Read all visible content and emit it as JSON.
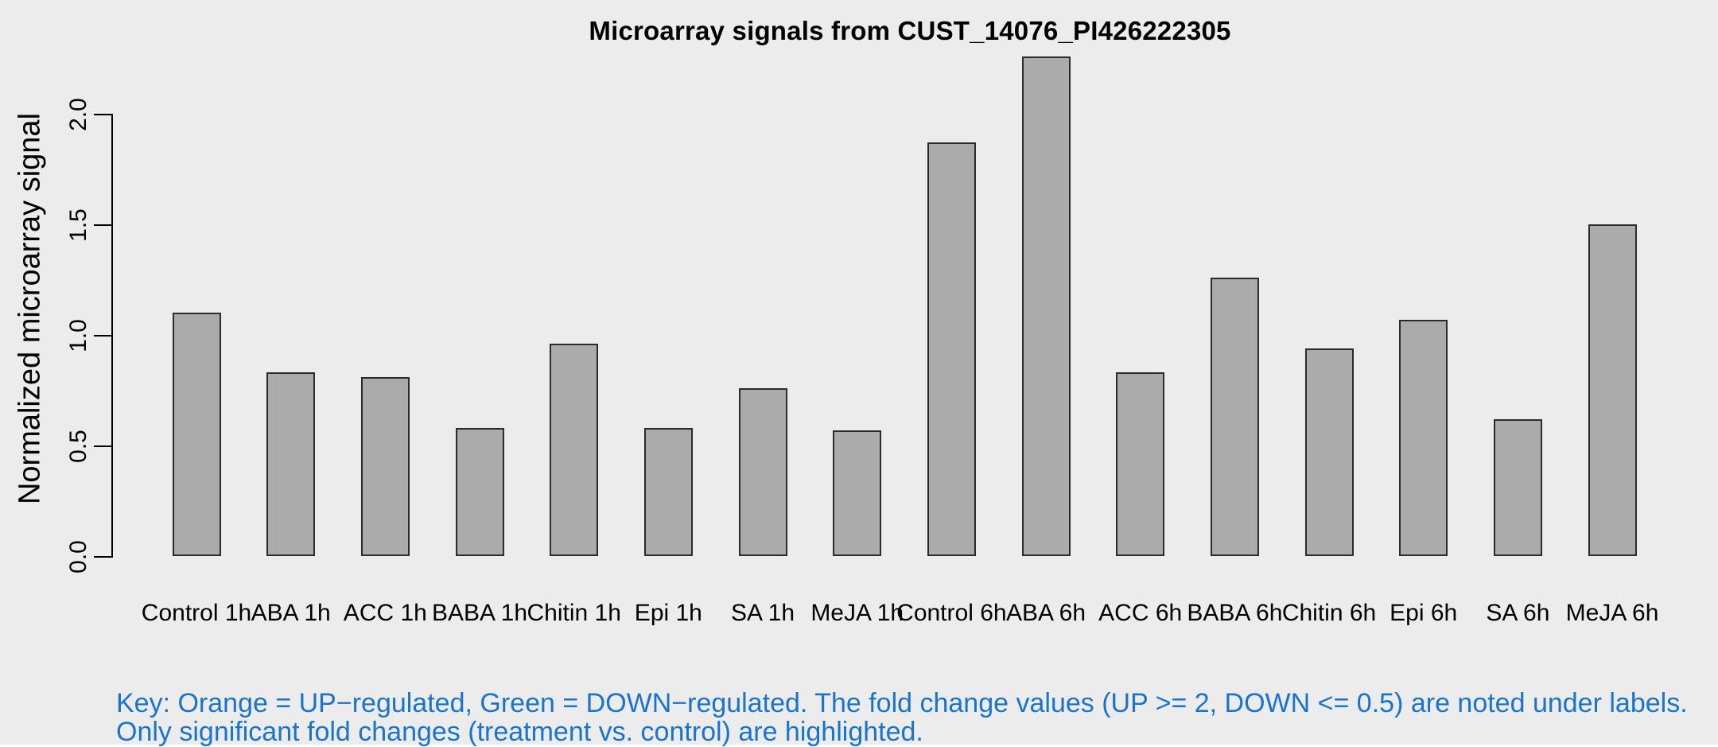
{
  "chart_data": {
    "type": "bar",
    "title": "Microarray signals from CUST_14076_PI426222305",
    "categories": [
      "Control 1h",
      "ABA 1h",
      "ACC 1h",
      "BABA 1h",
      "Chitin 1h",
      "Epi 1h",
      "SA 1h",
      "MeJA 1h",
      "Control 6h",
      "ABA 6h",
      "ACC 6h",
      "BABA 6h",
      "Chitin 6h",
      "Epi 6h",
      "SA 6h",
      "MeJA 6h"
    ],
    "values": [
      1.1,
      0.83,
      0.81,
      0.58,
      0.96,
      0.58,
      0.76,
      0.57,
      1.87,
      2.26,
      0.83,
      1.26,
      0.94,
      1.07,
      0.62,
      1.5
    ],
    "xlabel": "",
    "ylabel": "Normalized microarray signal",
    "ylim": [
      0,
      2.3
    ],
    "yticks": [
      0.0,
      0.5,
      1.0,
      1.5,
      2.0
    ],
    "ytick_labels": [
      "0.0",
      "0.5",
      "1.0",
      "1.5",
      "2.0"
    ],
    "grid": false,
    "legend": "none",
    "bar_fill": "#ABABAB",
    "bar_border": "#2B2B2B"
  },
  "footer": {
    "line1": "Key: Orange = UP−regulated, Green = DOWN−regulated. The fold change values (UP >= 2, DOWN <= 0.5) are noted under labels.",
    "line2": "Only significant fold changes (treatment vs. control) are highlighted.",
    "color": "#1874CD"
  },
  "colors": {
    "background": "#ECECEC",
    "axis": "#000000",
    "title_color": "#000000"
  }
}
